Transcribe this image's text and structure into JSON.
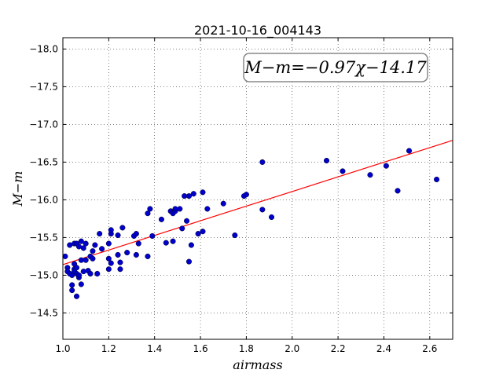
{
  "chart_data": {
    "type": "scatter",
    "title": "2021-10-16_004143",
    "xlabel": "airmass",
    "ylabel": "M−m",
    "xlim": [
      1.0,
      2.7
    ],
    "ylim": [
      -18.15,
      -14.15
    ],
    "y_inverted": true,
    "grid": true,
    "x_ticks": [
      1.0,
      1.2,
      1.4,
      1.6,
      1.8,
      2.0,
      2.2,
      2.4,
      2.6
    ],
    "x_tick_labels": [
      "1.0",
      "1.2",
      "1.4",
      "1.6",
      "1.8",
      "2.0",
      "2.2",
      "2.4",
      "2.6"
    ],
    "y_ticks": [
      -14.5,
      -15.0,
      -15.5,
      -16.0,
      -16.5,
      -17.0,
      -17.5,
      -18.0
    ],
    "y_tick_labels": [
      "−14.5",
      "−15.0",
      "−15.5",
      "−16.0",
      "−16.5",
      "−17.0",
      "−17.5",
      "−18.0"
    ],
    "annotation": "M−m=−0.97χ−14.17",
    "fit": {
      "slope": -0.97,
      "intercept": -14.17,
      "color": "#ff0000"
    },
    "point_color": "#0000cc",
    "x": [
      1.01,
      1.02,
      1.02,
      1.03,
      1.03,
      1.04,
      1.04,
      1.04,
      1.05,
      1.05,
      1.05,
      1.05,
      1.06,
      1.06,
      1.06,
      1.06,
      1.07,
      1.07,
      1.07,
      1.08,
      1.08,
      1.08,
      1.09,
      1.09,
      1.1,
      1.1,
      1.11,
      1.12,
      1.12,
      1.13,
      1.13,
      1.14,
      1.15,
      1.16,
      1.17,
      1.2,
      1.2,
      1.2,
      1.21,
      1.21,
      1.21,
      1.24,
      1.24,
      1.25,
      1.25,
      1.26,
      1.28,
      1.31,
      1.32,
      1.32,
      1.33,
      1.37,
      1.37,
      1.38,
      1.39,
      1.43,
      1.45,
      1.47,
      1.48,
      1.48,
      1.49,
      1.49,
      1.51,
      1.52,
      1.53,
      1.54,
      1.55,
      1.55,
      1.56,
      1.57,
      1.59,
      1.61,
      1.61,
      1.63,
      1.7,
      1.75,
      1.79,
      1.8,
      1.87,
      1.87,
      1.91,
      2.15,
      2.22,
      2.34,
      2.41,
      2.46,
      2.51,
      2.63
    ],
    "y": [
      -15.25,
      -15.1,
      -15.05,
      -15.02,
      -15.4,
      -14.8,
      -14.87,
      -15.0,
      -15.08,
      -15.15,
      -15.42,
      -15.05,
      -14.72,
      -15.1,
      -15.42,
      -15.02,
      -14.97,
      -15.0,
      -15.38,
      -14.88,
      -15.2,
      -15.45,
      -15.36,
      -15.05,
      -15.42,
      -15.2,
      -15.06,
      -15.02,
      -15.25,
      -15.32,
      -15.22,
      -15.4,
      -15.02,
      -15.55,
      -15.35,
      -15.08,
      -15.22,
      -15.42,
      -15.16,
      -15.55,
      -15.6,
      -15.53,
      -15.27,
      -15.08,
      -15.17,
      -15.63,
      -15.3,
      -15.52,
      -15.27,
      -15.55,
      -15.42,
      -15.25,
      -15.82,
      -15.88,
      -15.52,
      -15.74,
      -15.43,
      -15.85,
      -15.82,
      -15.45,
      -15.85,
      -15.88,
      -15.88,
      -15.62,
      -16.05,
      -15.72,
      -16.05,
      -15.18,
      -15.4,
      -16.08,
      -15.55,
      -15.58,
      -16.1,
      -15.88,
      -15.95,
      -15.53,
      -16.05,
      -16.07,
      -16.5,
      -15.87,
      -15.77,
      -16.52,
      -16.38,
      -16.33,
      -16.45,
      -16.12,
      -16.65,
      -16.27
    ]
  }
}
